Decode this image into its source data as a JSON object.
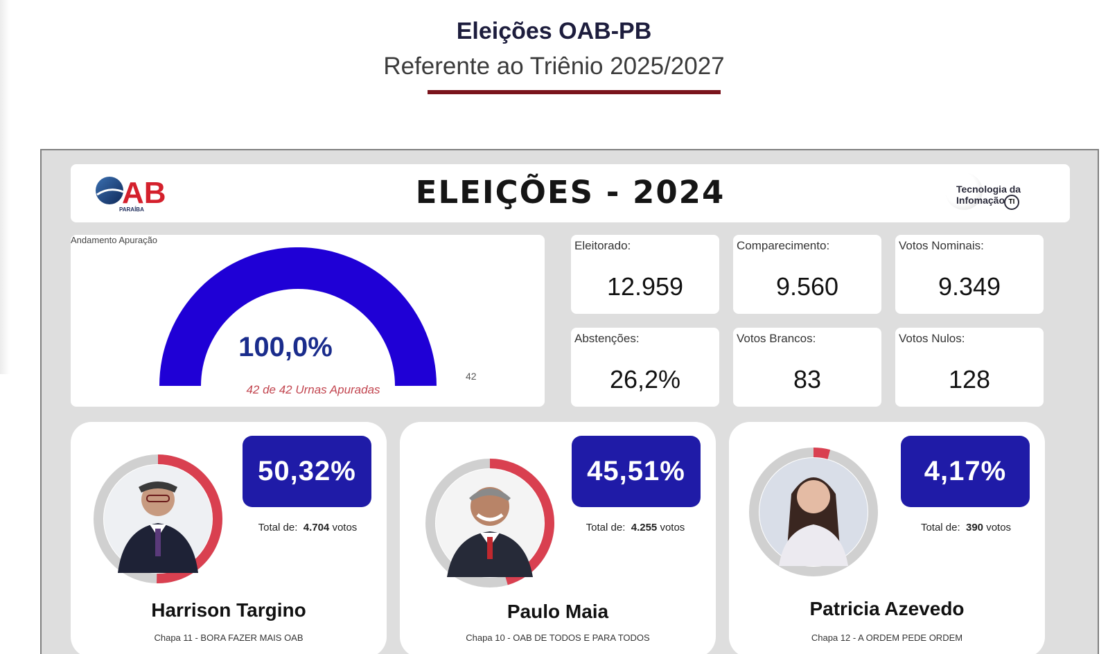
{
  "page": {
    "title": "Eleições OAB-PB",
    "subtitle": "Referente ao Triênio 2025/2027"
  },
  "header": {
    "title": "ELEIÇÕES - 2024",
    "oab_logo_text": "OAB",
    "oab_logo_subtext": "PARAÍBA",
    "ti_logo_text": "Tecnologia da\nInfomação",
    "ti_logo_badge": "TI"
  },
  "gauge": {
    "label": "Andamento Apuração",
    "value_text": "100,0%",
    "fraction": 1.0,
    "caption": "42 de 42 Urnas Apuradas",
    "max_label": "42",
    "fill_color": "#1f00d6",
    "track_color": "#e6e6e6"
  },
  "stats": [
    {
      "label": "Eleitorado:",
      "value": "12.959"
    },
    {
      "label": "Comparecimento:",
      "value": "9.560"
    },
    {
      "label": "Votos Nominais:",
      "value": "9.349"
    },
    {
      "label": "Abstenções:",
      "value": "26,2%"
    },
    {
      "label": "Votos Brancos:",
      "value": "83"
    },
    {
      "label": "Votos Nulos:",
      "value": "128"
    }
  ],
  "candidates": [
    {
      "name": "Harrison Targino",
      "chapa": "Chapa 11 - BORA FAZER MAIS OAB",
      "percent": "50,32%",
      "share": 0.5032,
      "votes_prefix": "Total de:",
      "votes": "4.704",
      "votes_suffix": "votos",
      "ring_color": "#d94050"
    },
    {
      "name": "Paulo Maia",
      "chapa": "Chapa 10 - OAB DE TODOS E PARA TODOS",
      "percent": "45,51%",
      "share": 0.4551,
      "votes_prefix": "Total de:",
      "votes": "4.255",
      "votes_suffix": "votos",
      "ring_color": "#d94050"
    },
    {
      "name": "Patricia Azevedo",
      "chapa": "Chapa 12 - A ORDEM PEDE ORDEM",
      "percent": "4,17%",
      "share": 0.0417,
      "votes_prefix": "Total de:",
      "votes": "390",
      "votes_suffix": "votos",
      "ring_color": "#d94050"
    }
  ],
  "colors": {
    "accent_box": "#1f1ba7",
    "title_underline": "#7a141c",
    "dashboard_bg": "#dedede"
  }
}
